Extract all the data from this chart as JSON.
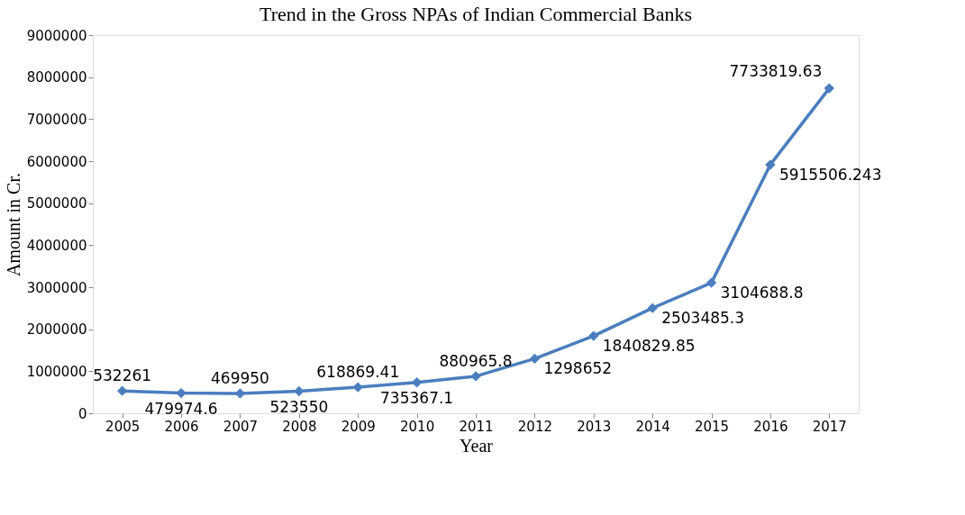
{
  "chart_data": {
    "type": "line",
    "title": "Trend in the Gross NPAs of Indian Commercial Banks",
    "xlabel": "Year",
    "ylabel": "Amount in Cr.",
    "categories": [
      "2005",
      "2006",
      "2007",
      "2008",
      "2009",
      "2010",
      "2011",
      "2012",
      "2013",
      "2014",
      "2015",
      "2016",
      "2017"
    ],
    "series": [
      {
        "color": "#4a7ebf",
        "values": [
          532261,
          479974.6,
          469950,
          523550,
          618869.41,
          735367.1,
          880965.8,
          1298652,
          1840829.85,
          2503485.3,
          3104688.8,
          5915506.243,
          7733819.63
        ]
      }
    ],
    "ylim": [
      0,
      9000000
    ],
    "yticks": [
      0,
      1000000,
      2000000,
      3000000,
      4000000,
      5000000,
      6000000,
      7000000,
      8000000,
      9000000
    ],
    "grid": false,
    "legend": false,
    "marker": "diamond",
    "line_style": "solid",
    "data_labels": true
  }
}
